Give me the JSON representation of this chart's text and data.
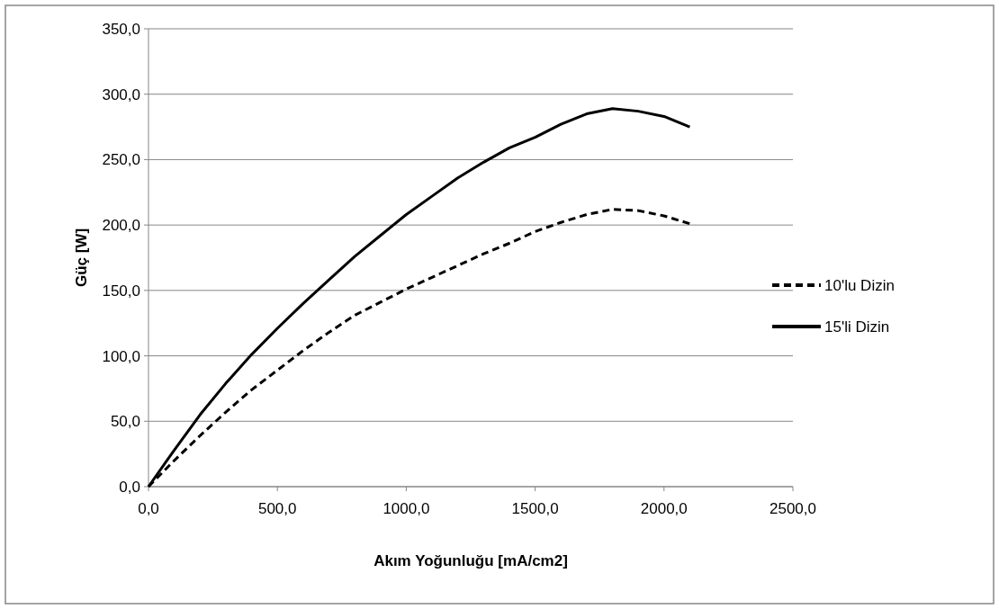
{
  "chart_data": {
    "type": "line",
    "xlabel": "Akım Yoğunluğu [mA/cm2]",
    "ylabel": "Güç [W]",
    "x": [
      0,
      100,
      200,
      300,
      400,
      500,
      600,
      700,
      800,
      900,
      1000,
      1100,
      1200,
      1300,
      1400,
      1500,
      1600,
      1700,
      1800,
      1900,
      2000,
      2100
    ],
    "series": [
      {
        "name": "10'lu Dizin",
        "color": "#000000",
        "line_style": "dashed",
        "values": [
          0,
          20,
          39,
          57,
          74,
          89,
          104,
          118,
          131,
          141,
          151,
          160,
          169,
          178,
          186,
          195,
          202,
          208,
          212,
          211,
          207,
          201
        ]
      },
      {
        "name": "15'li Dizin",
        "color": "#000000",
        "line_style": "solid",
        "values": [
          0,
          28,
          55,
          79,
          101,
          121,
          140,
          158,
          176,
          192,
          208,
          222,
          236,
          248,
          259,
          267,
          277,
          285,
          289,
          287,
          283,
          275
        ]
      }
    ],
    "xlim": [
      0,
      2500
    ],
    "ylim": [
      0,
      350
    ],
    "xticks": [
      {
        "value": 0,
        "label": "0,0"
      },
      {
        "value": 500,
        "label": "500,0"
      },
      {
        "value": 1000,
        "label": "1000,0"
      },
      {
        "value": 1500,
        "label": "1500,0"
      },
      {
        "value": 2000,
        "label": "2000,0"
      },
      {
        "value": 2500,
        "label": "2500,0"
      }
    ],
    "yticks": [
      {
        "value": 0,
        "label": "0,0"
      },
      {
        "value": 50,
        "label": "50,0"
      },
      {
        "value": 100,
        "label": "100,0"
      },
      {
        "value": 150,
        "label": "150,0"
      },
      {
        "value": 200,
        "label": "200,0"
      },
      {
        "value": 250,
        "label": "250,0"
      },
      {
        "value": 300,
        "label": "300,0"
      },
      {
        "value": 350,
        "label": "350,0"
      }
    ],
    "grid": "y",
    "legend": "right",
    "marker": "none"
  }
}
